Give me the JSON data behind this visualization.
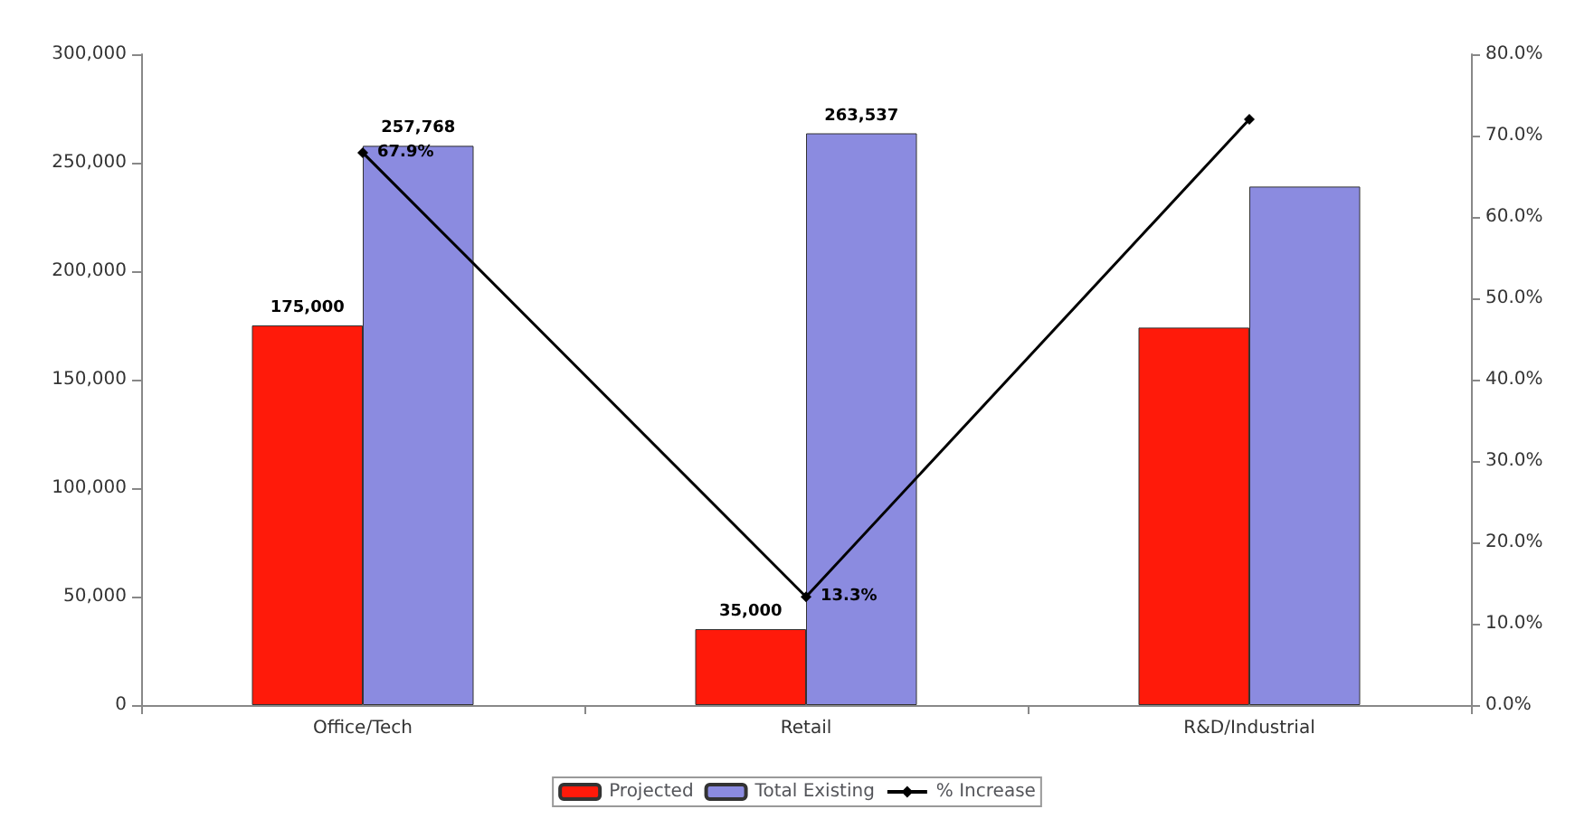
{
  "chart_data": {
    "type": "bar",
    "categories": [
      "Office/Tech",
      "Retail",
      "R&D/Industrial"
    ],
    "series": [
      {
        "name": "Projected",
        "color": "#ff1a0a",
        "values": [
          175000,
          35000,
          174000
        ],
        "value_labels": [
          "175,000",
          "35,000",
          null
        ]
      },
      {
        "name": "Total Existing",
        "color": "#8b8be0",
        "values": [
          257768,
          263537,
          239000
        ],
        "value_labels": [
          "257,768",
          "263,537",
          null
        ]
      },
      {
        "name": "% Increase",
        "type": "line",
        "axis": "y2",
        "color": "#000000",
        "marker": "diamond",
        "values": [
          67.9,
          13.3,
          72
        ],
        "value_labels": [
          "67.9%",
          "13.3%",
          null
        ]
      }
    ],
    "ylim": [
      0,
      300000
    ],
    "yticks": [
      0,
      {
        "value": 50000,
        "label": "50,000"
      },
      {
        "value": 100000,
        "label": "100,000"
      },
      {
        "value": 150000,
        "label": "150,000"
      },
      {
        "value": 200000,
        "label": "200,000"
      },
      {
        "value": 250000,
        "label": "250,000"
      },
      {
        "value": 300000,
        "label": "300,000"
      }
    ],
    "y2lim": [
      0,
      80
    ],
    "y2ticks": [
      {
        "value": 0,
        "label": "0.0%"
      },
      {
        "value": 10,
        "label": "10.0%"
      },
      {
        "value": 20,
        "label": "20.0%"
      },
      {
        "value": 30,
        "label": "30.0%"
      },
      {
        "value": 40,
        "label": "40.0%"
      },
      {
        "value": 50,
        "label": "50.0%"
      },
      {
        "value": 60,
        "label": "60.0%"
      },
      {
        "value": 70,
        "label": "70.0%"
      },
      {
        "value": 80,
        "label": "80.0%"
      }
    ],
    "grid": false,
    "legend": "bottom"
  }
}
